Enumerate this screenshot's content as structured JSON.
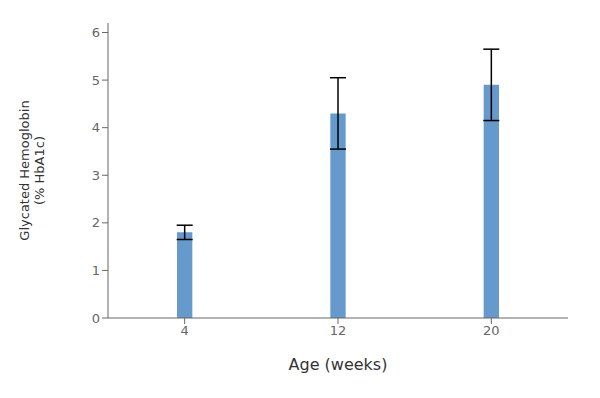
{
  "chart_data": {
    "type": "bar",
    "categories": [
      "4",
      "12",
      "20"
    ],
    "values": [
      1.8,
      4.3,
      4.9
    ],
    "error_upper": [
      0.15,
      0.75,
      0.75
    ],
    "error_lower": [
      0.15,
      0.75,
      0.75
    ],
    "color": "#6699CC",
    "xlabel": "Age (weeks)",
    "ylabel": "Glycated Hemoglobin\n(% HbA1c)",
    "ylim": [
      0,
      6.2
    ],
    "yticks": [
      0,
      1,
      2,
      3,
      4,
      5,
      6
    ],
    "grid": false
  }
}
